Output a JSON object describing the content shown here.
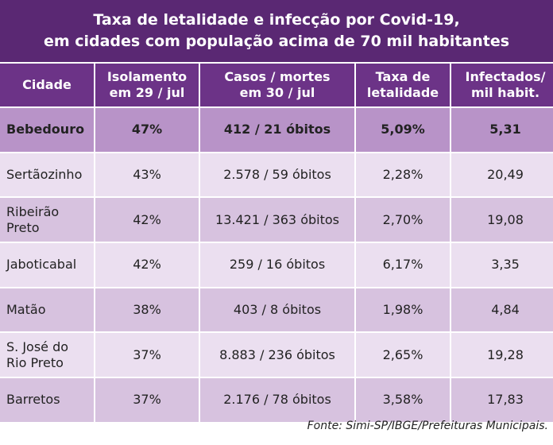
{
  "title": [
    "Taxa de letalidade e infecção por Covid-19,",
    "em cidades com população acima de 70 mil habitantes"
  ],
  "table": {
    "header": [
      [
        "Cidade"
      ],
      [
        "Isolamento",
        "em 29 / jul"
      ],
      [
        "Casos / mortes",
        "em 30 / jul"
      ],
      [
        "Taxa de",
        "letalidade"
      ],
      [
        "Infectados/",
        "mil habit."
      ]
    ],
    "rows": [
      [
        [
          "Bebedouro"
        ],
        "47%",
        "412 / 21 óbitos",
        "5,09%",
        "5,31"
      ],
      [
        [
          "Sertãozinho"
        ],
        "43%",
        "2.578 / 59 óbitos",
        "2,28%",
        "20,49"
      ],
      [
        [
          "Ribeirão",
          "Preto"
        ],
        "42%",
        "13.421 / 363 óbitos",
        "2,70%",
        "19,08"
      ],
      [
        [
          "Jaboticabal"
        ],
        "42%",
        "259 / 16 óbitos",
        "6,17%",
        "3,35"
      ],
      [
        [
          "Matão"
        ],
        "38%",
        "403 / 8 óbitos",
        "1,98%",
        "4,84"
      ],
      [
        [
          "S. José do",
          "Rio Preto"
        ],
        "37%",
        "8.883 / 236 óbitos",
        "2,65%",
        "19,28"
      ],
      [
        [
          "Barretos"
        ],
        "37%",
        "2.176 / 78 óbitos",
        "3,58%",
        "17,83"
      ]
    ]
  },
  "source": "Fonte: Simi-SP/IBGE/Prefeituras Municipais."
}
